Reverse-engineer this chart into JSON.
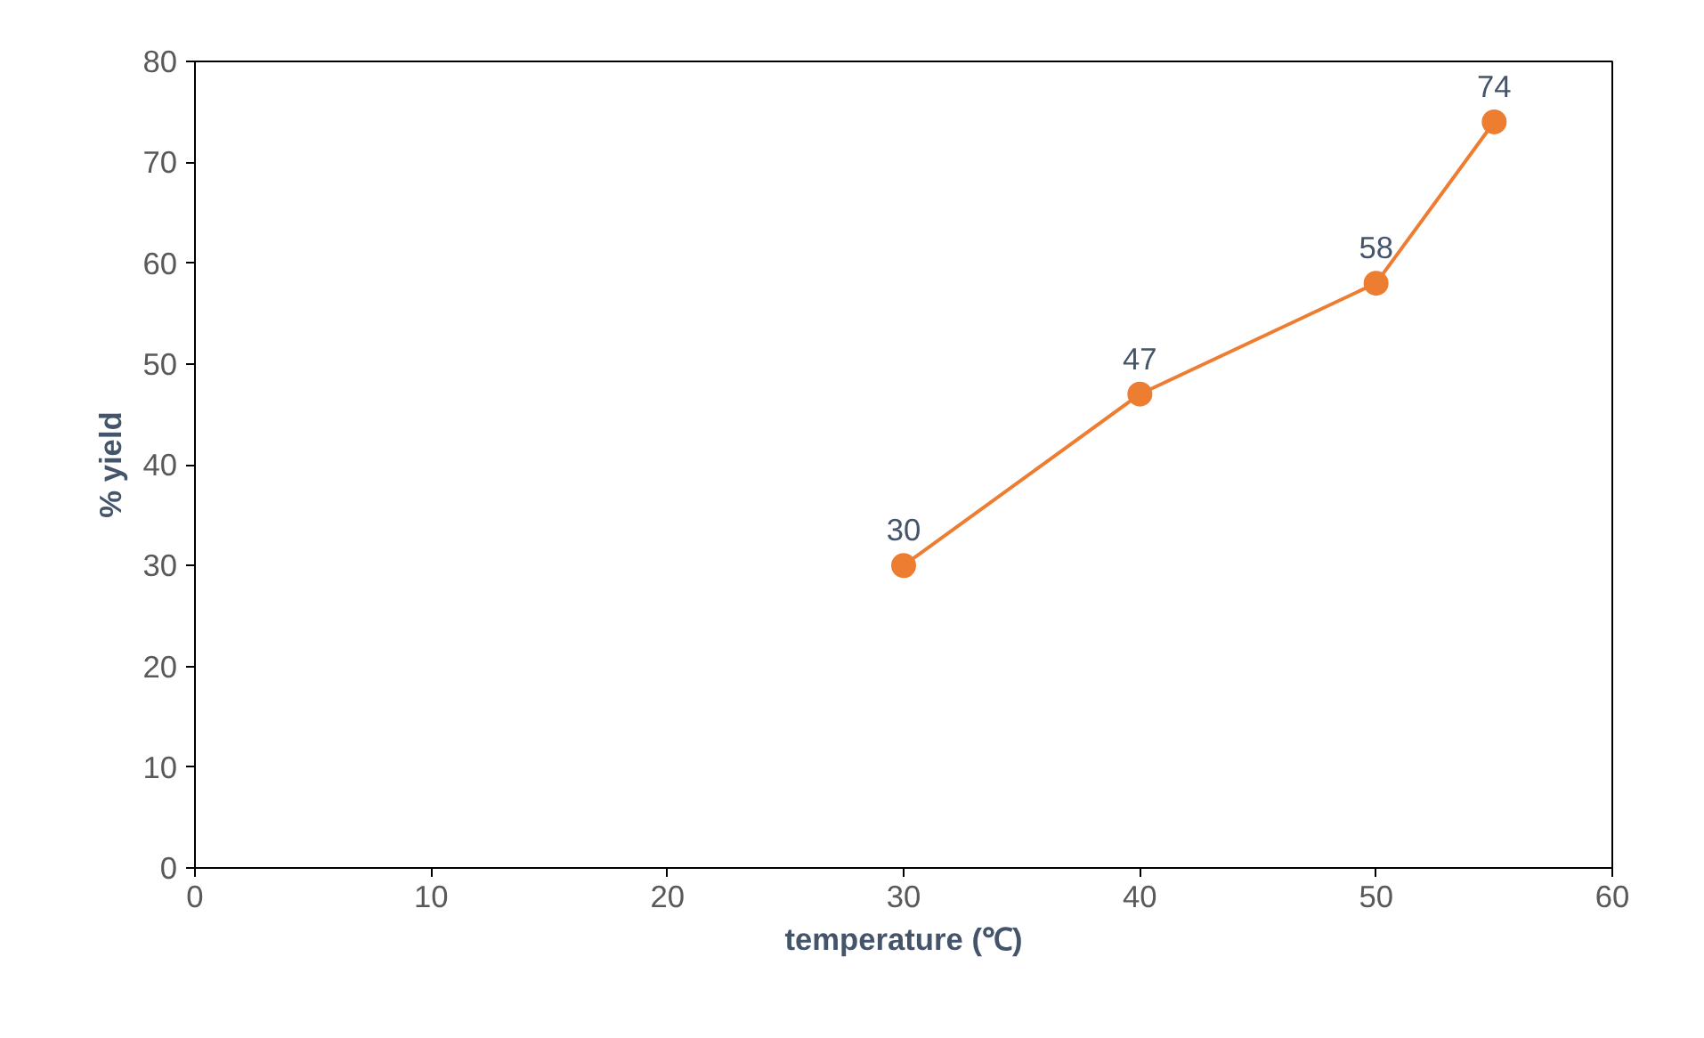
{
  "chart_data": {
    "type": "line",
    "xlabel": "temperature (℃)",
    "ylabel": "% yield",
    "x": [
      30,
      40,
      50,
      55
    ],
    "series": [
      {
        "color": "#ed7d31",
        "values": [
          30,
          47,
          58,
          74
        ]
      }
    ],
    "data_labels": true,
    "marker": "circle",
    "line_style": "solid",
    "grid": false,
    "xlim": [
      0,
      60
    ],
    "xticks": [
      0,
      10,
      20,
      30,
      40,
      50,
      60
    ],
    "ylim": [
      0,
      80
    ],
    "yticks": [
      0,
      10,
      20,
      30,
      40,
      50,
      60,
      70,
      80
    ]
  }
}
